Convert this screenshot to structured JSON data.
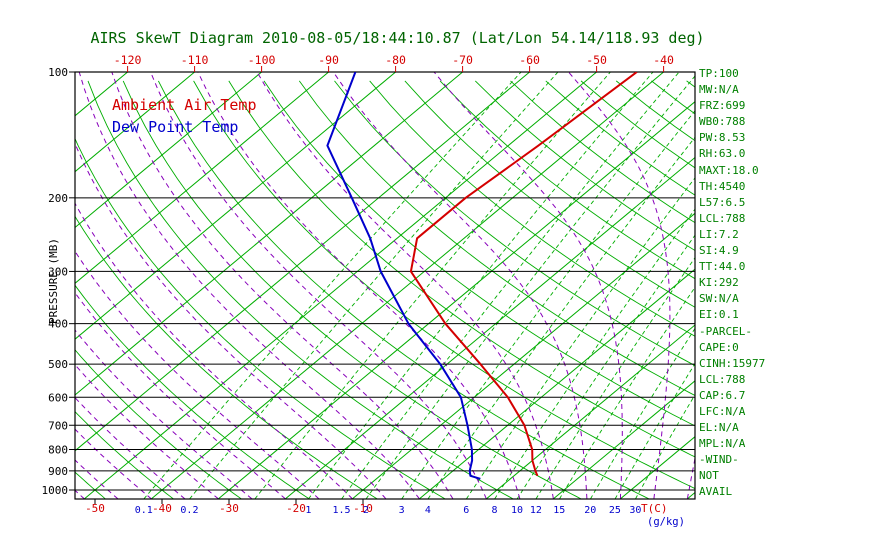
{
  "title": "AIRS SkewT Diagram 2010-08-05/18:44:10.87 (Lat/Lon 54.14/118.93 deg)",
  "legend": {
    "ambient": "Ambient Air Temp",
    "dew": "Dew Point Temp"
  },
  "colors": {
    "temp_profile": "#d40000",
    "dew_profile": "#0000cc",
    "grid_green": "#00ad00",
    "moist_purple": "#8800bb",
    "axis_black": "#000000",
    "top_labels_red": "#d40000",
    "bottom_temp_red": "#d40000",
    "mixing_labels_blue": "#0000cc",
    "title_green": "#006400",
    "stats_green": "#008000"
  },
  "y_axis": {
    "label": "PRESSURE (MB)",
    "ticks": [
      100,
      200,
      300,
      400,
      500,
      600,
      700,
      800,
      900,
      1000
    ]
  },
  "x_axis": {
    "top_temp_labels": [
      -120,
      -110,
      -100,
      -90,
      -80,
      -70,
      -60,
      -50,
      -40
    ],
    "bottom_temp_labels": [
      -50,
      -40,
      -30,
      -20,
      -10
    ],
    "temp_unit_label": "T(C)",
    "mixing_unit_label": "(g/kg)",
    "mixing_ratio_labels": [
      0.1,
      0.2,
      1,
      1.5,
      2,
      3,
      4,
      6,
      8,
      10,
      12,
      15,
      20,
      25,
      30
    ]
  },
  "side_stats": [
    "TP:100",
    "MW:N/A",
    "FRZ:699",
    "WB0:788",
    "PW:8.53",
    "RH:63.0",
    "MAXT:18.0",
    "TH:4540",
    "L57:6.5",
    "LCL:788",
    "LI:7.2",
    "SI:4.9",
    "TT:44.0",
    "KI:292",
    "SW:N/A",
    "EI:0.1",
    "-PARCEL-",
    "CAPE:0",
    "CINH:15977",
    "LCL:788",
    "CAP:6.7",
    "LFC:N/A",
    "EL:N/A",
    "MPL:N/A",
    "-WIND-",
    "NOT",
    "AVAIL"
  ],
  "chart_data": {
    "type": "line",
    "title": "AIRS SkewT Diagram 2010-08-05/18:44:10.87 (Lat/Lon 54.14/118.93 deg)",
    "xlabel": "T(C)",
    "ylabel": "PRESSURE (MB)",
    "y_scale": "log",
    "y_range_mb": [
      100,
      1050
    ],
    "x_top_labels_c": [
      -120,
      -40
    ],
    "x_bottom_labels_c": [
      -50,
      -10
    ],
    "legend_position": "upper-left",
    "grid": {
      "isotherms_c": {
        "min": -130,
        "max": 50,
        "step": 10
      },
      "dry_adiabats_theta_c": {
        "min": -60,
        "max": 200,
        "step": 10
      },
      "moist_adiabats_start_c": {
        "min": -60,
        "max": 40,
        "step": 5
      },
      "mixing_ratio_lines_gkg": [
        0.1,
        0.2,
        0.5,
        1,
        1.5,
        2,
        3,
        4,
        6,
        8,
        10,
        12,
        15,
        20,
        25,
        30
      ]
    },
    "series": [
      {
        "name": "Ambient Air Temp",
        "color": "#d40000",
        "points_mb_c": [
          [
            925,
            13.5
          ],
          [
            900,
            12.3
          ],
          [
            850,
            10.0
          ],
          [
            800,
            8.0
          ],
          [
            700,
            2.5
          ],
          [
            600,
            -5.0
          ],
          [
            500,
            -15.0
          ],
          [
            400,
            -27.5
          ],
          [
            300,
            -42.0
          ],
          [
            250,
            -47.0
          ],
          [
            200,
            -47.0
          ],
          [
            150,
            -45.5
          ],
          [
            100,
            -44.0
          ]
        ]
      },
      {
        "name": "Dew Point Temp",
        "color": "#0000cc",
        "points_mb_c": [
          [
            940,
            5.5
          ],
          [
            925,
            3.5
          ],
          [
            900,
            2.5
          ],
          [
            850,
            1.0
          ],
          [
            800,
            -1.0
          ],
          [
            700,
            -6.0
          ],
          [
            600,
            -12.0
          ],
          [
            500,
            -21.0
          ],
          [
            400,
            -33.0
          ],
          [
            300,
            -46.5
          ],
          [
            250,
            -54.0
          ],
          [
            200,
            -64.0
          ],
          [
            150,
            -77.0
          ],
          [
            100,
            -86.0
          ]
        ]
      }
    ]
  }
}
